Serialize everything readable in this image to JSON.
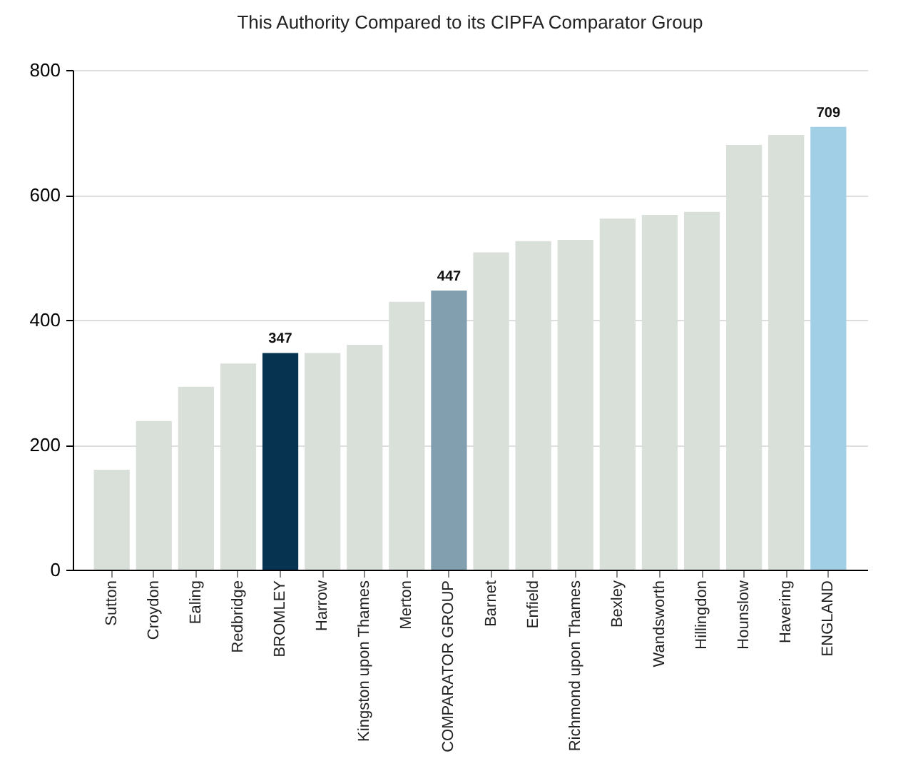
{
  "chart_data": {
    "type": "bar",
    "title": "This Authority Compared to its CIPFA Comparator Group",
    "categories": [
      "Sutton",
      "Croydon",
      "Ealing",
      "Redbridge",
      "BROMLEY",
      "Harrow",
      "Kingston upon Thames",
      "Merton",
      "COMPARATOR GROUP",
      "Barnet",
      "Enfield",
      "Richmond upon Thames",
      "Bexley",
      "Wandsworth",
      "Hillingdon",
      "Hounslow",
      "Havering",
      "ENGLAND"
    ],
    "values": [
      160,
      238,
      293,
      330,
      347,
      347,
      360,
      429,
      447,
      508,
      526,
      528,
      562,
      568,
      573,
      680,
      696,
      709
    ],
    "colors": [
      "#d9dfd9",
      "#d9dfd9",
      "#d9dfd9",
      "#d9dfd9",
      "#06334f",
      "#d9dfd9",
      "#d9dfd9",
      "#d9dfd9",
      "#819faf",
      "#d9dfd9",
      "#d9dfd9",
      "#d9dfd9",
      "#d9dfd9",
      "#d9dfd9",
      "#d9dfd9",
      "#d9dfd9",
      "#d9dfd9",
      "#a0cfe6"
    ],
    "value_labels": [
      null,
      null,
      null,
      null,
      "347",
      null,
      null,
      null,
      "447",
      null,
      null,
      null,
      null,
      null,
      null,
      null,
      null,
      "709"
    ],
    "ylim": [
      0,
      800
    ],
    "yticks": [
      0,
      200,
      400,
      600,
      800
    ],
    "grid": "y"
  }
}
